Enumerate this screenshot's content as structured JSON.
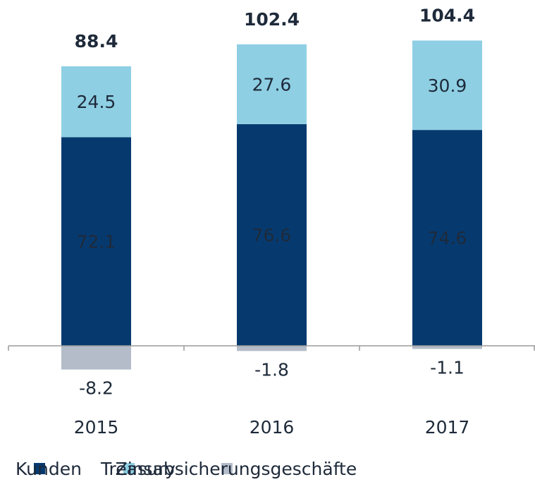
{
  "chart_data": {
    "type": "stacked_bar",
    "categories": [
      "2015",
      "2016",
      "2017"
    ],
    "series": [
      {
        "name": "Kunden",
        "color": "#063a6f",
        "values": [
          72.1,
          76.6,
          74.6
        ]
      },
      {
        "name": "Treasury",
        "color": "#8ecfe3",
        "values": [
          24.5,
          27.6,
          30.9
        ]
      },
      {
        "name": "Zinsabsicherungsgeschäfte",
        "color": "#b3bcc8",
        "values": [
          -8.2,
          -1.8,
          -1.1
        ]
      }
    ],
    "totals": [
      88.4,
      102.4,
      104.4
    ]
  }
}
